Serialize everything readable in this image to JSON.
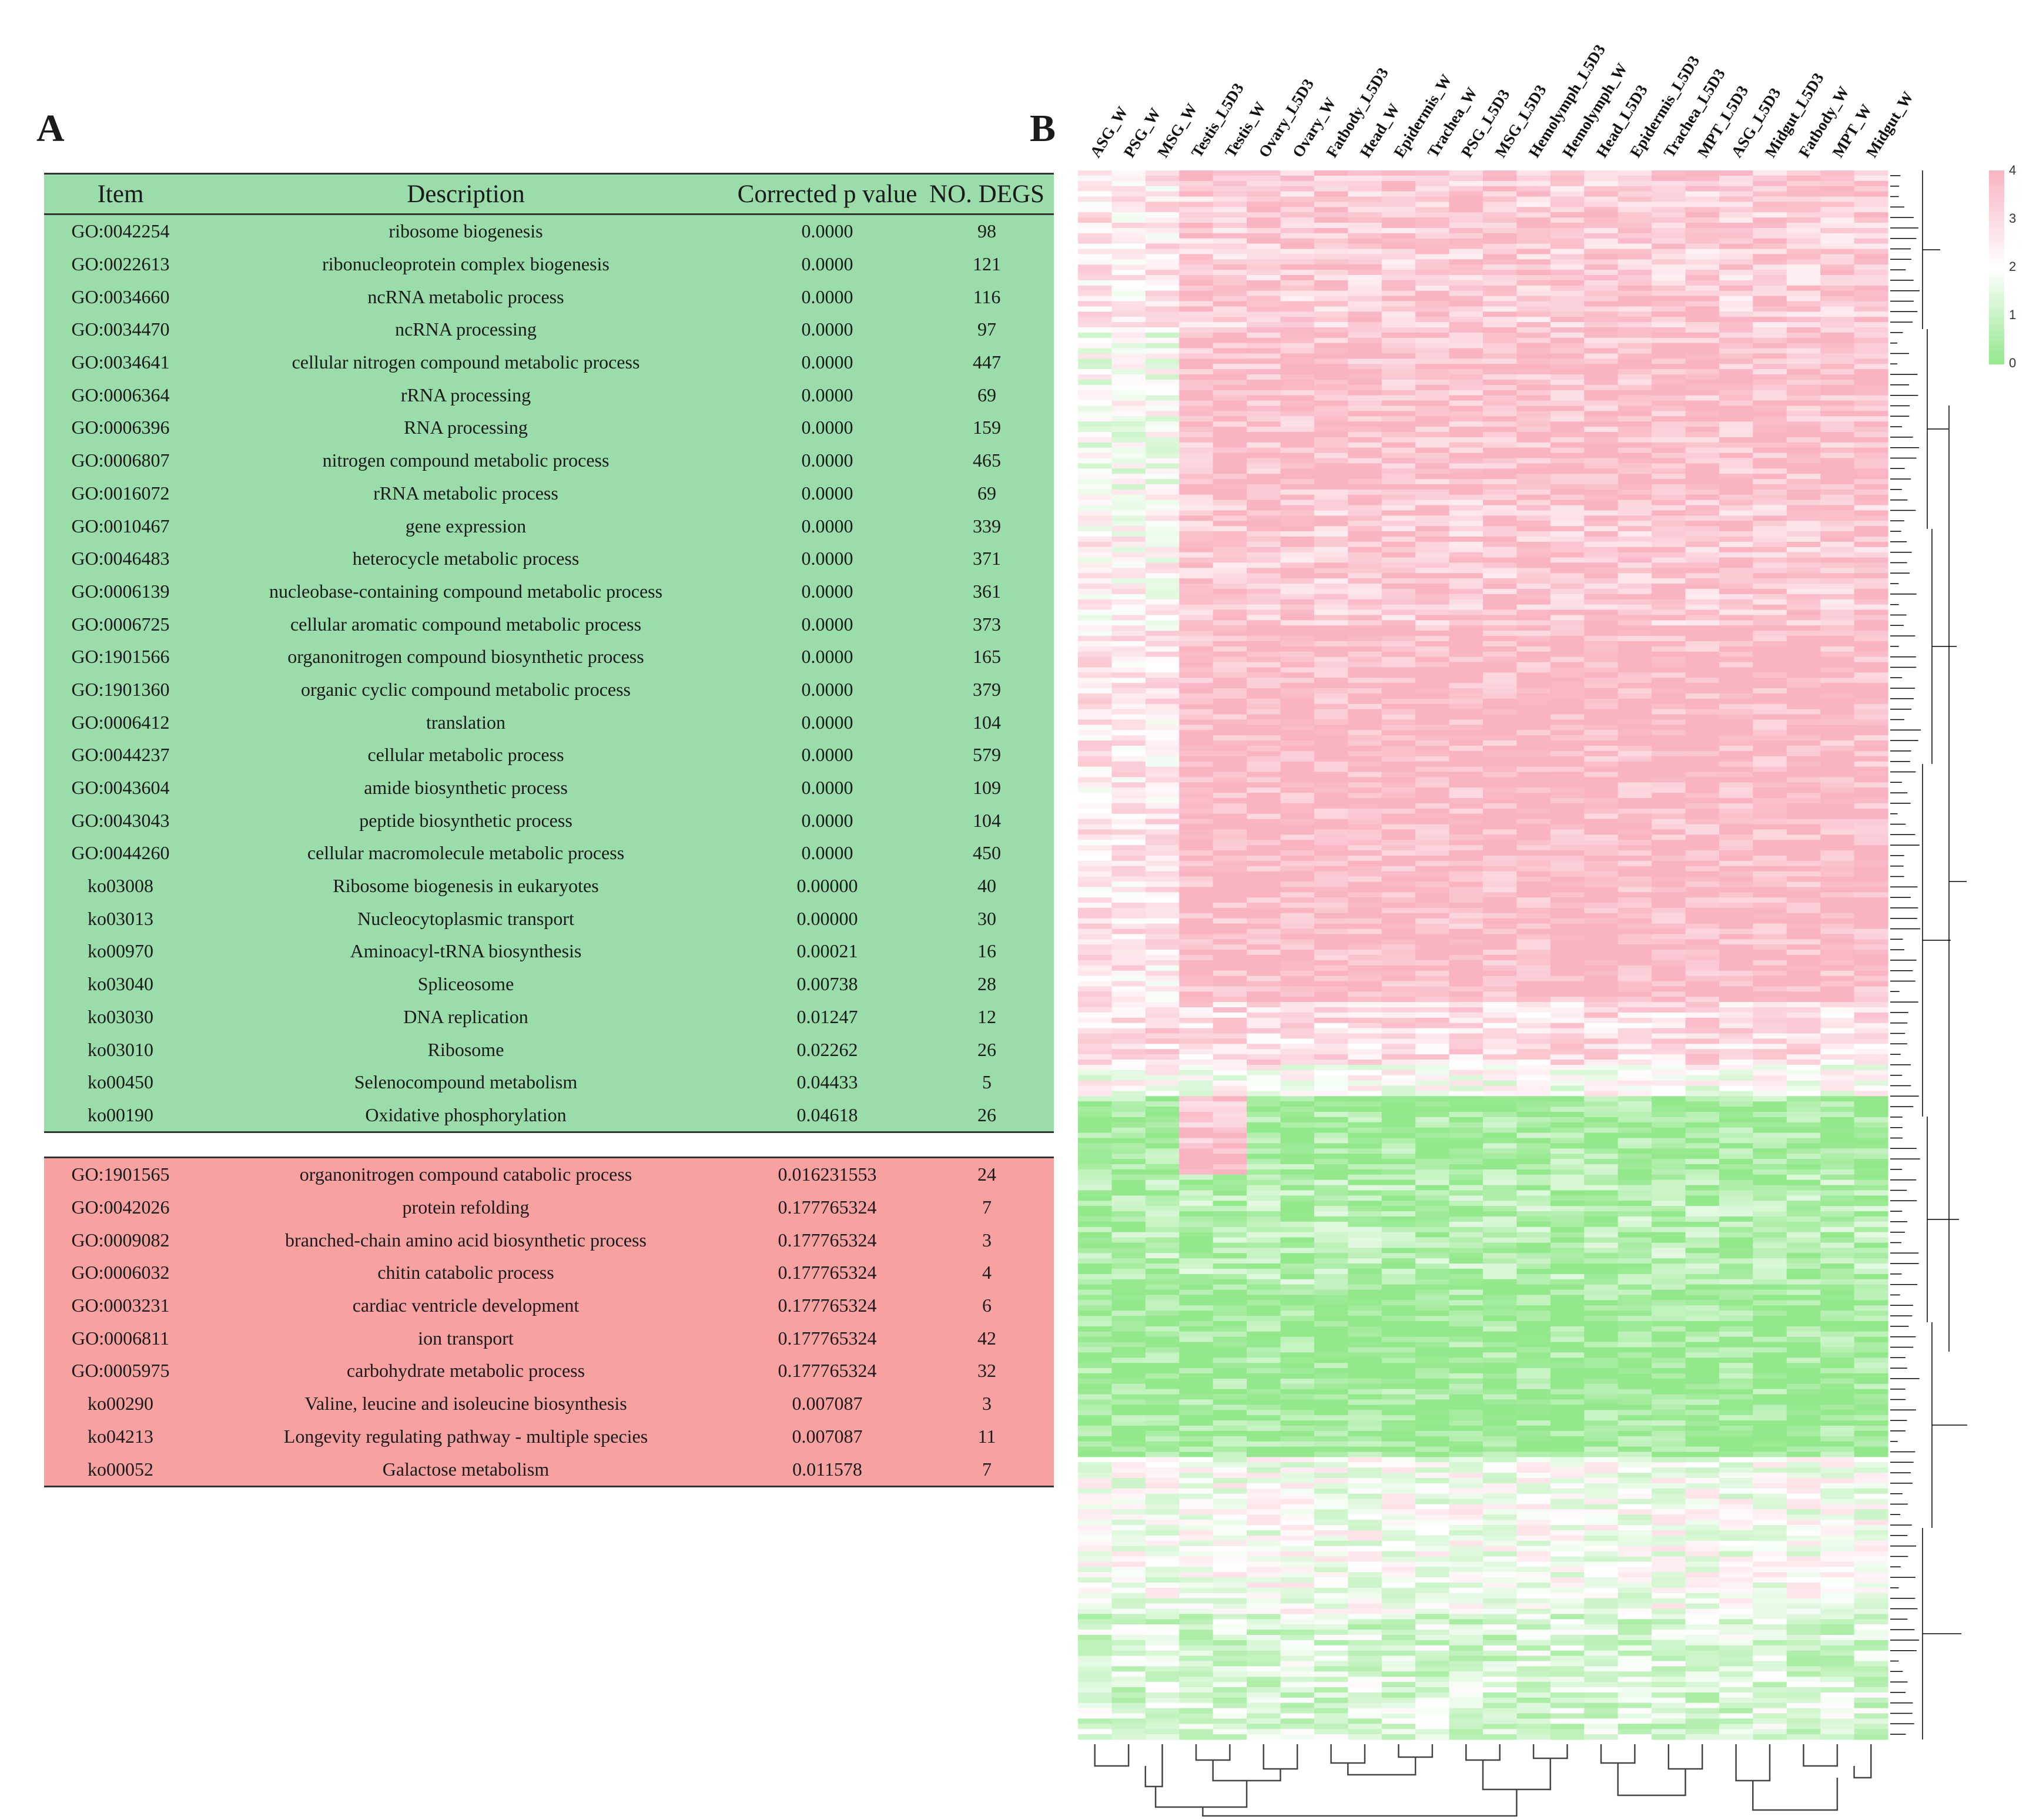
{
  "panels": {
    "a": "A",
    "b": "B"
  },
  "table": {
    "headers": [
      "Item",
      "Description",
      "Corrected p value",
      "NO. DEGS"
    ],
    "up_rows": [
      [
        "GO:0042254",
        "ribosome biogenesis",
        "0.0000",
        "98"
      ],
      [
        "GO:0022613",
        "ribonucleoprotein complex biogenesis",
        "0.0000",
        "121"
      ],
      [
        "GO:0034660",
        "ncRNA metabolic process",
        "0.0000",
        "116"
      ],
      [
        "GO:0034470",
        "ncRNA processing",
        "0.0000",
        "97"
      ],
      [
        "GO:0034641",
        "cellular nitrogen compound metabolic process",
        "0.0000",
        "447"
      ],
      [
        "GO:0006364",
        "rRNA processing",
        "0.0000",
        "69"
      ],
      [
        "GO:0006396",
        "RNA processing",
        "0.0000",
        "159"
      ],
      [
        "GO:0006807",
        "nitrogen compound metabolic process",
        "0.0000",
        "465"
      ],
      [
        "GO:0016072",
        "rRNA metabolic process",
        "0.0000",
        "69"
      ],
      [
        "GO:0010467",
        "gene expression",
        "0.0000",
        "339"
      ],
      [
        "GO:0046483",
        "heterocycle metabolic process",
        "0.0000",
        "371"
      ],
      [
        "GO:0006139",
        "nucleobase-containing compound metabolic process",
        "0.0000",
        "361"
      ],
      [
        "GO:0006725",
        "cellular aromatic compound metabolic process",
        "0.0000",
        "373"
      ],
      [
        "GO:1901566",
        "organonitrogen compound biosynthetic process",
        "0.0000",
        "165"
      ],
      [
        "GO:1901360",
        "organic cyclic compound metabolic process",
        "0.0000",
        "379"
      ],
      [
        "GO:0006412",
        "translation",
        "0.0000",
        "104"
      ],
      [
        "GO:0044237",
        "cellular metabolic process",
        "0.0000",
        "579"
      ],
      [
        "GO:0043604",
        "amide biosynthetic process",
        "0.0000",
        "109"
      ],
      [
        "GO:0043043",
        "peptide biosynthetic process",
        "0.0000",
        "104"
      ],
      [
        "GO:0044260",
        "cellular macromolecule metabolic process",
        "0.0000",
        "450"
      ],
      [
        "ko03008",
        "Ribosome biogenesis in eukaryotes",
        "0.00000",
        "40"
      ],
      [
        "ko03013",
        "Nucleocytoplasmic transport",
        "0.00000",
        "30"
      ],
      [
        "ko00970",
        "Aminoacyl-tRNA biosynthesis",
        "0.00021",
        "16"
      ],
      [
        "ko03040",
        "Spliceosome",
        "0.00738",
        "28"
      ],
      [
        "ko03030",
        "DNA replication",
        "0.01247",
        "12"
      ],
      [
        "ko03010",
        "Ribosome",
        "0.02262",
        "26"
      ],
      [
        "ko00450",
        "Selenocompound metabolism",
        "0.04433",
        "5"
      ],
      [
        "ko00190",
        "Oxidative phosphorylation",
        "0.04618",
        "26"
      ]
    ],
    "down_rows": [
      [
        "GO:1901565",
        "organonitrogen compound catabolic process",
        "0.016231553",
        "24"
      ],
      [
        "GO:0042026",
        "protein refolding",
        "0.177765324",
        "7"
      ],
      [
        "GO:0009082",
        "branched-chain amino acid biosynthetic process",
        "0.177765324",
        "3"
      ],
      [
        "GO:0006032",
        "chitin catabolic process",
        "0.177765324",
        "4"
      ],
      [
        "GO:0003231",
        "cardiac ventricle development",
        "0.177765324",
        "6"
      ],
      [
        "GO:0006811",
        "ion transport",
        "0.177765324",
        "42"
      ],
      [
        "GO:0005975",
        "carbohydrate metabolic process",
        "0.177765324",
        "32"
      ],
      [
        "ko00290",
        "Valine, leucine and isoleucine biosynthesis",
        "0.007087",
        "3"
      ],
      [
        "ko04213",
        "Longevity regulating pathway - multiple species",
        "0.007087",
        "11"
      ],
      [
        "ko00052",
        "Galactose metabolism",
        "0.011578",
        "7"
      ]
    ]
  },
  "heatmap": {
    "columns": [
      "ASG_W",
      "PSG_W",
      "MSG_W",
      "Testis_L5D3",
      "Testis_W",
      "Ovary_L5D3",
      "Ovary_W",
      "Fatbody_L5D3",
      "Head_W",
      "Epidermis_W",
      "Trachea_W",
      "PSG_L5D3",
      "MSG_L5D3",
      "Hemolymph_L5D3",
      "Hemolymph_W",
      "Head_L5D3",
      "Epidermis_L5D3",
      "Trachea_L5D3",
      "MPT_L5D3",
      "ASG_L5D3",
      "Midgut_L5D3",
      "Fatbody_W",
      "MPT_W",
      "Midgut_W"
    ],
    "color_scale": {
      "ticks": [
        "4",
        "3",
        "2",
        "1",
        "0"
      ],
      "high": "#f9b3c1",
      "mid": "#ffffff",
      "low": "#93e88c"
    }
  }
}
